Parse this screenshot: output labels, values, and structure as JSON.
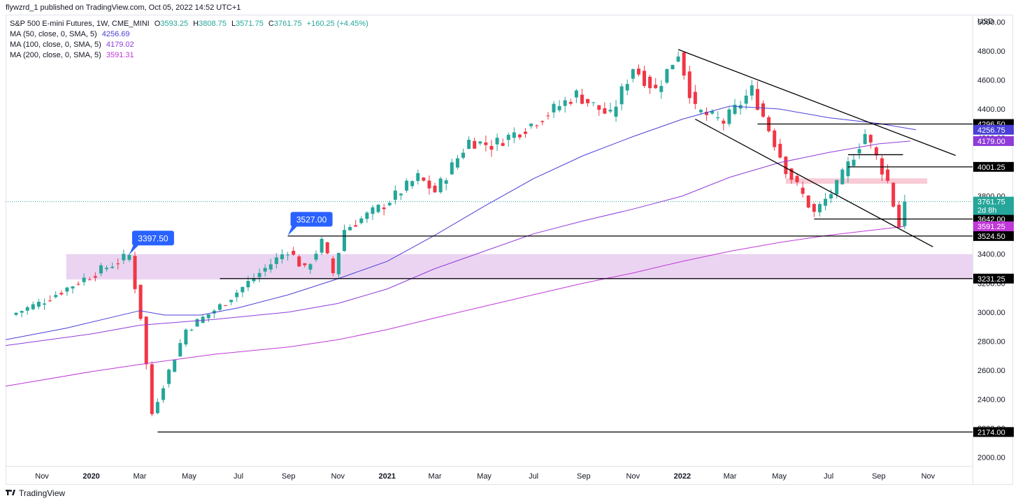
{
  "publisher": "flywzrd_1 published on TradingView.com, Oct 05, 2022 14:52 UTC+1",
  "brand": "TradingView",
  "brand_icon": "tradingview-logo-icon",
  "legend": {
    "symbol": "S&P 500 E-mini Futures, 1W, CME_MINI",
    "open_label": "O",
    "open": "3593.25",
    "high_label": "H",
    "high": "3808.75",
    "low_label": "L",
    "low": "3571.75",
    "close_label": "C",
    "close": "3761.75",
    "change": "+160.25 (+4.45%)",
    "ma50_name": "MA (50, close, 0, SMA, 5)",
    "ma50_value": "4256.69",
    "ma100_name": "MA (100, close, 0, SMA, 5)",
    "ma100_value": "4179.02",
    "ma200_name": "MA (200, close, 0, SMA, 5)",
    "ma200_value": "3591.31"
  },
  "colors": {
    "up": "#26a69a",
    "down": "#f23645",
    "ma50": "#4a3fd6",
    "ma100": "#8e3bd9",
    "ma200": "#c038d8",
    "zone": "#e6c9ee",
    "zone_small": "#f7c5d2",
    "line": "#000000",
    "callout": "#2962ff"
  },
  "chart_data": {
    "type": "candlestick",
    "currency": "USD",
    "y_ticks": [
      2000,
      2200,
      2400,
      2600,
      2800,
      3000,
      3200,
      3400,
      3600,
      3800,
      4000,
      4200,
      4400,
      4600,
      4800,
      5000
    ],
    "y_tick_labels": [
      "2000.00",
      "2200.00",
      "2400.00",
      "2600.00",
      "2800.00",
      "3000.00",
      "3200.00",
      "3400.00",
      "3600.00",
      "3800.00",
      "4000.00",
      "4200.00",
      "4400.00",
      "4600.00",
      "4800.00",
      "5000.00"
    ],
    "ylim": [
      1940,
      5050
    ],
    "x_range": [
      "2019-09-17",
      "2022-12-26"
    ],
    "x_ticks": [
      {
        "date": "2019-11-01",
        "label": "Nov",
        "bold": false
      },
      {
        "date": "2020-01-01",
        "label": "2020",
        "bold": true
      },
      {
        "date": "2020-03-01",
        "label": "Mar",
        "bold": false
      },
      {
        "date": "2020-05-01",
        "label": "May",
        "bold": false
      },
      {
        "date": "2020-07-01",
        "label": "Jul",
        "bold": false
      },
      {
        "date": "2020-09-01",
        "label": "Sep",
        "bold": false
      },
      {
        "date": "2020-11-01",
        "label": "Nov",
        "bold": false
      },
      {
        "date": "2021-01-01",
        "label": "2021",
        "bold": true
      },
      {
        "date": "2021-03-01",
        "label": "Mar",
        "bold": false
      },
      {
        "date": "2021-05-01",
        "label": "May",
        "bold": false
      },
      {
        "date": "2021-07-01",
        "label": "Jul",
        "bold": false
      },
      {
        "date": "2021-09-01",
        "label": "Sep",
        "bold": false
      },
      {
        "date": "2021-11-01",
        "label": "Nov",
        "bold": false
      },
      {
        "date": "2022-01-01",
        "label": "2022",
        "bold": true
      },
      {
        "date": "2022-03-01",
        "label": "Mar",
        "bold": false
      },
      {
        "date": "2022-05-01",
        "label": "May",
        "bold": false
      },
      {
        "date": "2022-07-01",
        "label": "Jul",
        "bold": false
      },
      {
        "date": "2022-09-01",
        "label": "Sep",
        "bold": false
      },
      {
        "date": "2022-11-01",
        "label": "Nov",
        "bold": false
      }
    ],
    "key_points": [
      {
        "date": "2019-09-23",
        "close": 2980
      },
      {
        "date": "2019-10-28",
        "close": 3060
      },
      {
        "date": "2019-12-23",
        "close": 3230
      },
      {
        "date": "2020-02-17",
        "close": 3390
      },
      {
        "date": "2020-03-02",
        "close": 2970
      },
      {
        "date": "2020-03-16",
        "close": 2300
      },
      {
        "date": "2020-03-30",
        "close": 2500
      },
      {
        "date": "2020-04-27",
        "close": 2880
      },
      {
        "date": "2020-06-08",
        "close": 3040
      },
      {
        "date": "2020-07-27",
        "close": 3270
      },
      {
        "date": "2020-08-31",
        "close": 3430
      },
      {
        "date": "2020-09-21",
        "close": 3290
      },
      {
        "date": "2020-10-12",
        "close": 3480
      },
      {
        "date": "2020-10-26",
        "close": 3270
      },
      {
        "date": "2020-11-09",
        "close": 3570
      },
      {
        "date": "2020-12-28",
        "close": 3740
      },
      {
        "date": "2021-02-08",
        "close": 3930
      },
      {
        "date": "2021-03-01",
        "close": 3830
      },
      {
        "date": "2021-04-12",
        "close": 4180
      },
      {
        "date": "2021-05-10",
        "close": 4150
      },
      {
        "date": "2021-06-21",
        "close": 4270
      },
      {
        "date": "2021-08-23",
        "close": 4500
      },
      {
        "date": "2021-09-20",
        "close": 4400
      },
      {
        "date": "2021-10-04",
        "close": 4350
      },
      {
        "date": "2021-11-01",
        "close": 4690
      },
      {
        "date": "2021-11-29",
        "close": 4530
      },
      {
        "date": "2021-12-27",
        "close": 4790
      },
      {
        "date": "2022-01-17",
        "close": 4390
      },
      {
        "date": "2022-02-21",
        "close": 4310
      },
      {
        "date": "2022-03-28",
        "close": 4530
      },
      {
        "date": "2022-05-09",
        "close": 3990
      },
      {
        "date": "2022-06-13",
        "close": 3680
      },
      {
        "date": "2022-07-11",
        "close": 3870
      },
      {
        "date": "2022-08-15",
        "close": 4230
      },
      {
        "date": "2022-09-12",
        "close": 3900
      },
      {
        "date": "2022-09-26",
        "close": 3590
      },
      {
        "date": "2022-10-03",
        "close": 3761.75
      }
    ],
    "last_candle": {
      "date": "2022-10-03",
      "open": 3593.25,
      "high": 3808.75,
      "low": 3571.75,
      "close": 3761.75
    },
    "ma_series": [
      {
        "name": "MA (50, close, 0, SMA, 5)",
        "color": "#4a3fd6",
        "points": [
          [
            "2019-09-17",
            2810
          ],
          [
            "2019-12-01",
            2890
          ],
          [
            "2020-03-01",
            3010
          ],
          [
            "2020-04-01",
            2980
          ],
          [
            "2020-05-15",
            2980
          ],
          [
            "2020-07-01",
            3030
          ],
          [
            "2020-09-01",
            3120
          ],
          [
            "2020-11-01",
            3230
          ],
          [
            "2021-01-01",
            3350
          ],
          [
            "2021-03-01",
            3530
          ],
          [
            "2021-05-01",
            3730
          ],
          [
            "2021-07-01",
            3920
          ],
          [
            "2021-09-01",
            4080
          ],
          [
            "2021-11-01",
            4210
          ],
          [
            "2022-01-01",
            4330
          ],
          [
            "2022-03-01",
            4420
          ],
          [
            "2022-05-01",
            4400
          ],
          [
            "2022-07-01",
            4340
          ],
          [
            "2022-09-01",
            4300
          ],
          [
            "2022-10-17",
            4256.69
          ]
        ]
      },
      {
        "name": "MA (100, close, 0, SMA, 5)",
        "color": "#8e3bd9",
        "points": [
          [
            "2019-09-17",
            2770
          ],
          [
            "2020-01-01",
            2850
          ],
          [
            "2020-03-01",
            2910
          ],
          [
            "2020-06-01",
            2950
          ],
          [
            "2020-09-01",
            3000
          ],
          [
            "2020-11-01",
            3060
          ],
          [
            "2021-01-01",
            3160
          ],
          [
            "2021-03-01",
            3300
          ],
          [
            "2021-05-01",
            3420
          ],
          [
            "2021-07-01",
            3540
          ],
          [
            "2021-09-01",
            3630
          ],
          [
            "2021-11-01",
            3710
          ],
          [
            "2022-01-01",
            3800
          ],
          [
            "2022-03-01",
            3930
          ],
          [
            "2022-05-01",
            4030
          ],
          [
            "2022-07-01",
            4100
          ],
          [
            "2022-09-01",
            4160
          ],
          [
            "2022-10-10",
            4179.02
          ]
        ]
      },
      {
        "name": "MA (200, close, 0, SMA, 5)",
        "color": "#c038d8",
        "points": [
          [
            "2019-09-17",
            2490
          ],
          [
            "2020-01-01",
            2590
          ],
          [
            "2020-03-01",
            2640
          ],
          [
            "2020-06-01",
            2710
          ],
          [
            "2020-09-01",
            2760
          ],
          [
            "2020-11-01",
            2810
          ],
          [
            "2021-01-01",
            2880
          ],
          [
            "2021-03-01",
            2960
          ],
          [
            "2021-05-01",
            3040
          ],
          [
            "2021-07-01",
            3120
          ],
          [
            "2021-09-01",
            3200
          ],
          [
            "2021-11-01",
            3270
          ],
          [
            "2022-01-01",
            3350
          ],
          [
            "2022-03-01",
            3420
          ],
          [
            "2022-05-01",
            3480
          ],
          [
            "2022-07-01",
            3530
          ],
          [
            "2022-09-01",
            3570
          ],
          [
            "2022-10-03",
            3591.31
          ]
        ]
      }
    ],
    "horizontal_levels": [
      {
        "price": 2174.0,
        "label": "2174.00",
        "from": "2020-03-23"
      },
      {
        "price": 3231.25,
        "label": "3231.25",
        "from": "2020-06-08"
      },
      {
        "price": 3524.5,
        "label": "3524.50",
        "from": "2020-08-31"
      },
      {
        "price": 3642.0,
        "label": "3642.00",
        "from": "2022-06-13"
      },
      {
        "price": 4001.25,
        "label": "4001.25",
        "from": "2022-07-25"
      },
      {
        "price": 4296.5,
        "label": "4296.50",
        "from": "2022-04-04"
      },
      {
        "price": 4085,
        "label": "",
        "from": "2022-07-25",
        "to": "2022-10-01"
      }
    ],
    "zones": [
      {
        "from": "2019-12-01",
        "to": "2022-12-26",
        "low": 3225,
        "high": 3400
      },
      {
        "from": "2022-05-09",
        "to": "2022-10-31",
        "low": 3885,
        "high": 3922
      }
    ],
    "trendlines": [
      {
        "from": [
          "2021-12-27",
          4810
        ],
        "to": [
          "2022-12-05",
          4080
        ]
      },
      {
        "from": [
          "2022-01-17",
          4330
        ],
        "to": [
          "2022-11-07",
          3450
        ]
      }
    ],
    "callouts": [
      {
        "date": "2020-02-17",
        "price": 3397.5,
        "label": "3397.50"
      },
      {
        "date": "2020-08-31",
        "price": 3527.0,
        "label": "3527.00"
      }
    ],
    "price_labels": [
      {
        "price": 4256.75,
        "label": "4256.75",
        "color": "#4a3fd6"
      },
      {
        "price": 4179.0,
        "label": "4179.00",
        "color": "#8e3bd9"
      },
      {
        "price": 3591.25,
        "label": "3591.25",
        "color": "#c038d8"
      },
      {
        "price": 3761.75,
        "label": "3761.75",
        "sub": "2d 8h",
        "color": "#26a69a"
      }
    ]
  }
}
